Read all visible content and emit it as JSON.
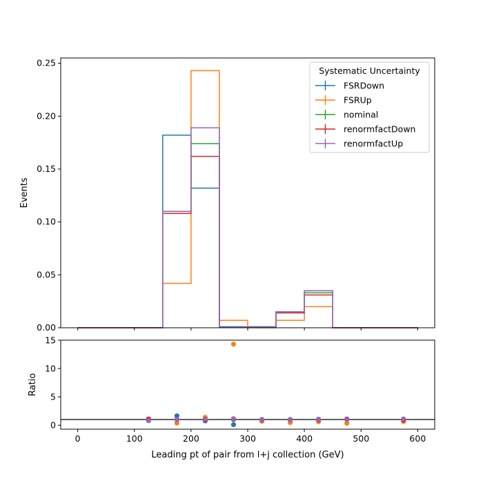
{
  "chart_data": [
    {
      "type": "line",
      "drawstyle": "steps",
      "ylabel": "Events",
      "xlim": [
        -30,
        630
      ],
      "ylim": [
        0,
        0.255
      ],
      "xticks": [
        0,
        100,
        200,
        300,
        400,
        500,
        600
      ],
      "yticks": [
        0.0,
        0.05,
        0.1,
        0.15,
        0.2,
        0.25
      ],
      "ytick_labels": [
        "0.00",
        "0.05",
        "0.10",
        "0.15",
        "0.20",
        "0.25"
      ],
      "bin_edges": [
        0,
        50,
        100,
        150,
        200,
        250,
        300,
        350,
        400,
        450,
        500,
        550,
        600
      ],
      "legend": {
        "title": "Systematic Uncertainty",
        "placement": "upper right"
      },
      "series": [
        {
          "name": "FSRDown",
          "color": "#1f77b4",
          "values": [
            0,
            0,
            0,
            0.182,
            0.132,
            0.001,
            0.001,
            0.015,
            0.035,
            0,
            0,
            0
          ]
        },
        {
          "name": "FSRUp",
          "color": "#ff7f0e",
          "values": [
            0,
            0,
            0,
            0.042,
            0.243,
            0.007,
            0.0,
            0.007,
            0.02,
            0,
            0,
            0
          ]
        },
        {
          "name": "nominal",
          "color": "#2ca02c",
          "values": [
            0,
            0,
            0,
            0.11,
            0.174,
            0.0005,
            0.0005,
            0.015,
            0.033,
            0,
            0,
            0
          ]
        },
        {
          "name": "renormfactDown",
          "color": "#d62728",
          "values": [
            0,
            0,
            0,
            0.108,
            0.162,
            0.0005,
            0.0005,
            0.014,
            0.031,
            0,
            0,
            0
          ]
        },
        {
          "name": "renormfactUp",
          "color": "#9467bd",
          "values": [
            0,
            0,
            0,
            0.11,
            0.189,
            0.0005,
            0.0005,
            0.015,
            0.035,
            0,
            0,
            0
          ]
        }
      ]
    },
    {
      "type": "scatter",
      "xlabel": "Leading pt of pair from l+j collection (GeV)",
      "ylabel": "Ratio",
      "xlim": [
        -30,
        630
      ],
      "ylim": [
        -0.7,
        15
      ],
      "xticks": [
        0,
        100,
        200,
        300,
        400,
        500,
        600
      ],
      "yticks": [
        0,
        5,
        10,
        15
      ],
      "reference_line": 1,
      "series": [
        {
          "name": "FSRDown",
          "color": "#1f77b4",
          "points": [
            [
              125,
              1.0
            ],
            [
              175,
              1.65
            ],
            [
              225,
              0.76
            ],
            [
              275,
              0.1
            ],
            [
              325,
              1.0
            ],
            [
              375,
              1.0
            ],
            [
              425,
              1.06
            ],
            [
              475,
              1.0
            ],
            [
              575,
              1.0
            ]
          ]
        },
        {
          "name": "FSRUp",
          "color": "#ff7f0e",
          "points": [
            [
              125,
              1.0
            ],
            [
              175,
              0.38
            ],
            [
              225,
              1.39
            ],
            [
              275,
              14.3
            ],
            [
              325,
              0.7
            ],
            [
              375,
              0.47
            ],
            [
              425,
              0.61
            ],
            [
              475,
              0.35
            ],
            [
              575,
              0.65
            ]
          ]
        },
        {
          "name": "nominal",
          "color": "#2ca02c",
          "points": [
            [
              125,
              1.0
            ],
            [
              175,
              1.0
            ],
            [
              225,
              1.0
            ],
            [
              275,
              1.0
            ],
            [
              325,
              1.0
            ],
            [
              375,
              1.0
            ],
            [
              425,
              1.0
            ],
            [
              475,
              1.0
            ],
            [
              575,
              1.0
            ]
          ]
        },
        {
          "name": "renormfactDown",
          "color": "#d62728",
          "points": [
            [
              125,
              1.1
            ],
            [
              175,
              0.98
            ],
            [
              225,
              0.93
            ],
            [
              275,
              1.05
            ],
            [
              325,
              0.95
            ],
            [
              375,
              0.95
            ],
            [
              425,
              0.94
            ],
            [
              475,
              1.1
            ],
            [
              575,
              0.9
            ]
          ]
        },
        {
          "name": "renormfactUp",
          "color": "#9467bd",
          "points": [
            [
              125,
              0.8
            ],
            [
              175,
              1.0
            ],
            [
              225,
              1.08
            ],
            [
              275,
              1.15
            ],
            [
              325,
              1.0
            ],
            [
              375,
              1.0
            ],
            [
              425,
              1.06
            ],
            [
              475,
              1.0
            ],
            [
              575,
              1.1
            ]
          ]
        }
      ]
    }
  ]
}
